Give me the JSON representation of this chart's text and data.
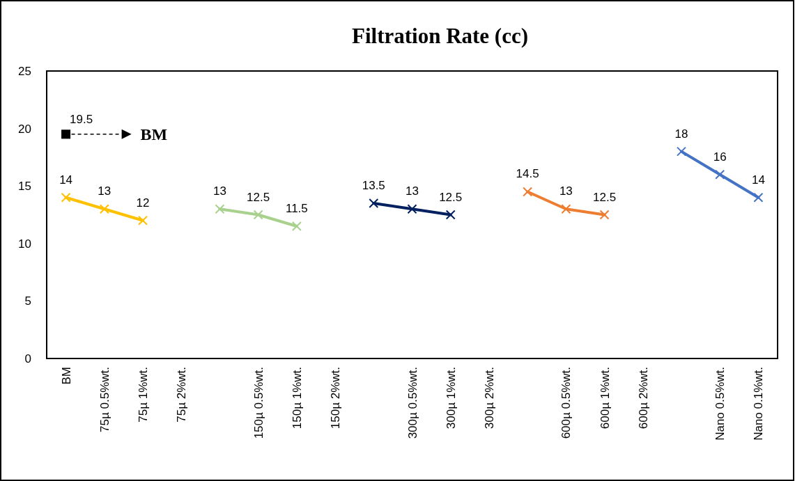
{
  "chart_data": {
    "type": "line",
    "title": "Filtration Rate (cc)",
    "categories": [
      "BM",
      "75µ 0.5%wt.",
      "75µ 1%wt.",
      "75µ 2%wt.",
      null,
      "150µ 0.5%wt.",
      "150µ 1%wt.",
      "150µ 2%wt.",
      null,
      "300µ 0.5%wt.",
      "300µ 1%wt.",
      "300µ 2%wt.",
      null,
      "600µ 0.5%wt.",
      "600µ 1%wt.",
      "600µ 2%wt.",
      null,
      "Nano 0.5%wt.",
      "Nano 0.1%wt."
    ],
    "series": [
      {
        "color": "#ffc000",
        "values": [
          14,
          13,
          12,
          null,
          null,
          null,
          null,
          null,
          null,
          null,
          null,
          null,
          null,
          null,
          null,
          null,
          null,
          null,
          null
        ]
      },
      {
        "color": "#a9d18e",
        "values": [
          null,
          null,
          null,
          null,
          13,
          12.5,
          11.5,
          null,
          null,
          null,
          null,
          null,
          null,
          null,
          null,
          null,
          null,
          null,
          null
        ]
      },
      {
        "color": "#002060",
        "values": [
          null,
          null,
          null,
          null,
          null,
          null,
          null,
          null,
          13.5,
          13,
          12.5,
          null,
          null,
          null,
          null,
          null,
          null,
          null,
          null
        ]
      },
      {
        "color": "#ed7d31",
        "values": [
          null,
          null,
          null,
          null,
          null,
          null,
          null,
          null,
          null,
          null,
          null,
          null,
          14.5,
          13,
          12.5,
          null,
          null,
          null,
          null
        ]
      },
      {
        "color": "#4472c4",
        "values": [
          null,
          null,
          null,
          null,
          null,
          null,
          null,
          null,
          null,
          null,
          null,
          null,
          null,
          null,
          null,
          null,
          18,
          16,
          14
        ]
      },
      {
        "type": "scatter",
        "marker": "square",
        "color": "#000000",
        "values": [
          19.5,
          null,
          null,
          null,
          null,
          null,
          null,
          null,
          null,
          null,
          null,
          null,
          null,
          null,
          null,
          null,
          null,
          null,
          null
        ]
      }
    ],
    "marker": "cross",
    "ylim": [
      0,
      25
    ],
    "yticks": [
      0,
      5,
      10,
      15,
      20,
      25
    ],
    "grid": false,
    "data_labels": true,
    "annotations": [
      "BM"
    ]
  }
}
